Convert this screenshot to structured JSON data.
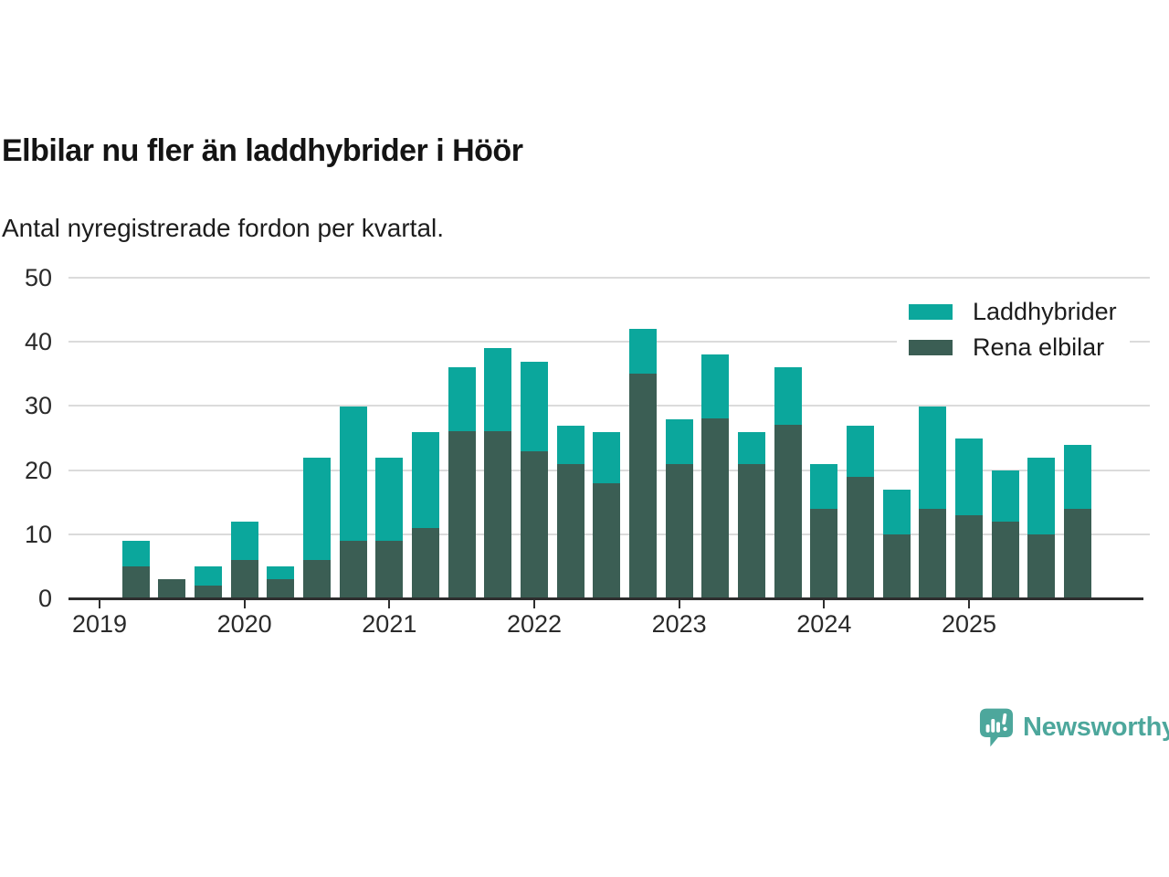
{
  "header": {
    "title": "Elbilar nu fler än laddhybrider i Höör",
    "subtitle": "Antal nyregistrerade fordon per kvartal."
  },
  "chart_data": {
    "type": "bar",
    "stacked": true,
    "title": "Elbilar nu fler än laddhybrider i Höör",
    "subtitle": "Antal nyregistrerade fordon per kvartal.",
    "x": [
      "2019-Q2",
      "2019-Q3",
      "2019-Q4",
      "2020-Q1",
      "2020-Q2",
      "2020-Q3",
      "2020-Q4",
      "2021-Q1",
      "2021-Q2",
      "2021-Q3",
      "2021-Q4",
      "2022-Q1",
      "2022-Q2",
      "2022-Q3",
      "2022-Q4",
      "2023-Q1",
      "2023-Q2",
      "2023-Q3",
      "2023-Q4",
      "2024-Q1",
      "2024-Q2",
      "2024-Q3",
      "2024-Q4",
      "2025-Q1",
      "2025-Q2",
      "2025-Q3",
      "2025-Q4"
    ],
    "series": [
      {
        "name": "Laddhybrider",
        "color": "#0ba79c",
        "values": [
          4,
          0,
          3,
          6,
          2,
          16,
          21,
          13,
          15,
          10,
          13,
          14,
          6,
          8,
          7,
          7,
          10,
          5,
          9,
          7,
          8,
          7,
          16,
          12,
          8,
          12,
          10
        ]
      },
      {
        "name": "Rena elbilar",
        "color": "#3b5e54",
        "values": [
          5,
          3,
          2,
          6,
          3,
          6,
          9,
          9,
          11,
          26,
          26,
          23,
          21,
          18,
          35,
          21,
          28,
          21,
          27,
          14,
          19,
          10,
          14,
          13,
          12,
          10,
          14
        ]
      }
    ],
    "ylim": [
      0,
      50
    ],
    "yticks": [
      0,
      10,
      20,
      30,
      40,
      50
    ],
    "xticks": [
      "2019",
      "2020",
      "2021",
      "2022",
      "2023",
      "2024",
      "2025"
    ],
    "grid": "horizontal",
    "legend_position": "top-right"
  },
  "legend": {
    "items": [
      {
        "label": "Laddhybrider",
        "color": "#0ba79c"
      },
      {
        "label": "Rena elbilar",
        "color": "#3b5e54"
      }
    ]
  },
  "footer": {
    "brand": "Newsworthy",
    "brand_color": "#4da79c"
  }
}
